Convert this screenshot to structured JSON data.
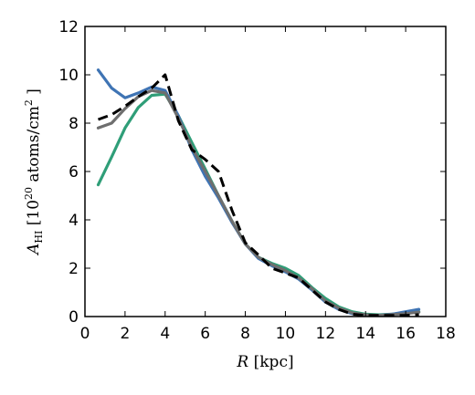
{
  "chart_data": {
    "type": "line",
    "xlabel": {
      "var": "R",
      "unit": " [kpc]"
    },
    "ylabel": {
      "var": "A",
      "sub": "HI",
      "pre": " [10",
      "sup": "20",
      "post": " atoms/cm",
      "sup2": "2",
      "end": " ]"
    },
    "xlim": [
      0,
      18
    ],
    "ylim": [
      0,
      12
    ],
    "x_ticks": [
      0,
      2,
      4,
      6,
      8,
      10,
      12,
      14,
      16,
      18
    ],
    "y_ticks": [
      0,
      2,
      4,
      6,
      8,
      10,
      12
    ],
    "grid": false,
    "legend": "none",
    "series": [
      {
        "color": "#2f9e78",
        "style": "solid",
        "x": [
          0.66,
          1.33,
          2.0,
          2.66,
          3.33,
          4.0,
          4.66,
          5.33,
          6.0,
          6.66,
          7.33,
          8.0,
          8.66,
          9.33,
          10.0,
          10.66,
          11.33,
          12.0,
          12.66,
          13.33,
          14.0,
          14.66,
          15.33,
          16.0,
          16.66
        ],
        "y": [
          5.45,
          6.6,
          7.8,
          8.65,
          9.15,
          9.2,
          8.3,
          7.2,
          6.1,
          5.0,
          3.95,
          3.0,
          2.45,
          2.2,
          2.0,
          1.7,
          1.2,
          0.75,
          0.4,
          0.2,
          0.1,
          0.07,
          0.1,
          0.15,
          0.2
        ]
      },
      {
        "color": "#3f74b4",
        "style": "solid",
        "x": [
          0.66,
          1.33,
          2.0,
          2.66,
          3.33,
          4.0,
          4.66,
          5.33,
          6.0,
          6.66,
          7.33,
          8.0,
          8.66,
          9.33,
          10.0,
          10.66,
          11.33,
          12.0,
          12.66,
          13.33,
          14.0,
          14.66,
          15.33,
          16.0,
          16.66
        ],
        "y": [
          10.2,
          9.45,
          9.05,
          9.25,
          9.5,
          9.35,
          8.3,
          6.9,
          5.8,
          4.9,
          3.9,
          3.0,
          2.4,
          2.1,
          1.85,
          1.55,
          1.1,
          0.6,
          0.3,
          0.12,
          0.05,
          0.05,
          0.1,
          0.2,
          0.3
        ]
      },
      {
        "color": "#6e6e6e",
        "style": "solid",
        "x": [
          0.66,
          1.33,
          2.0,
          2.66,
          3.33,
          4.0,
          4.66,
          5.33,
          6.0,
          6.66,
          7.33,
          8.0,
          8.66,
          9.33,
          10.0,
          10.66,
          11.33,
          12.0,
          12.66,
          13.33,
          14.0,
          14.66,
          15.33,
          16.0,
          16.66
        ],
        "y": [
          7.8,
          8.0,
          8.6,
          9.1,
          9.35,
          9.25,
          8.2,
          7.0,
          6.0,
          5.0,
          3.95,
          3.0,
          2.45,
          2.15,
          1.9,
          1.6,
          1.15,
          0.65,
          0.35,
          0.15,
          0.07,
          0.05,
          0.08,
          0.12,
          0.18
        ]
      },
      {
        "color": "#000000",
        "style": "dashed",
        "x": [
          0.66,
          1.33,
          2.0,
          2.66,
          3.33,
          4.0,
          4.66,
          5.33,
          6.0,
          6.66,
          7.33,
          8.0,
          8.66,
          9.33,
          10.0,
          10.66,
          11.33,
          12.0,
          12.66,
          13.33,
          14.0,
          14.66,
          15.33,
          16.0,
          16.66
        ],
        "y": [
          8.15,
          8.35,
          8.7,
          9.1,
          9.45,
          10.0,
          8.1,
          6.9,
          6.5,
          6.0,
          4.4,
          3.05,
          2.55,
          2.0,
          1.8,
          1.6,
          1.1,
          0.6,
          0.3,
          0.1,
          0.05,
          0.05,
          0.05,
          0.05,
          0.08
        ]
      }
    ]
  }
}
